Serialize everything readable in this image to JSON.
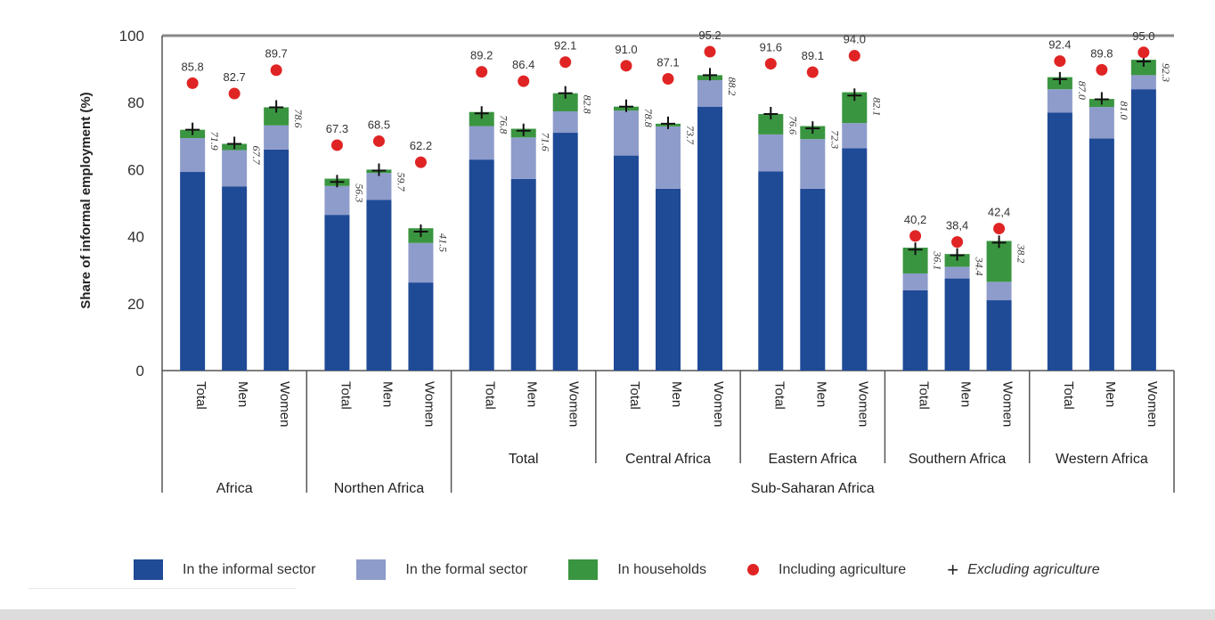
{
  "chart_data": {
    "type": "bar",
    "stacked": true,
    "title": "",
    "ylabel": "Share of informal employment (%)",
    "xlabel": "",
    "ylim": [
      0,
      100
    ],
    "yticks": [
      0,
      20,
      40,
      60,
      80,
      100
    ],
    "grid": false,
    "legend_position": "bottom",
    "colors": {
      "informal": "#1f4a96",
      "formal": "#8e9ccb",
      "households": "#3a9540",
      "including_agriculture": "#e02424",
      "excluding_agriculture": "#111111"
    },
    "legend": [
      {
        "key": "informal",
        "label": "In the informal sector"
      },
      {
        "key": "formal",
        "label": "In the formal sector"
      },
      {
        "key": "households",
        "label": "In households"
      },
      {
        "key": "including_agriculture",
        "label": "Including agriculture"
      },
      {
        "key": "excluding_agriculture",
        "label": "Excluding agriculture"
      }
    ],
    "groups": [
      {
        "label": "Africa",
        "super": null
      },
      {
        "label": "Northen Africa",
        "super": null
      },
      {
        "label": "Total",
        "super": "Sub-Saharan Africa"
      },
      {
        "label": "Central Africa",
        "super": "Sub-Saharan Africa"
      },
      {
        "label": "Eastern Africa",
        "super": "Sub-Saharan Africa"
      },
      {
        "label": "Southern Africa",
        "super": "Sub-Saharan Africa"
      },
      {
        "label": "Western Africa",
        "super": "Sub-Saharan Africa"
      }
    ],
    "supergroup_label": "Sub-Saharan Africa",
    "categories": [
      "Total",
      "Men",
      "Women"
    ],
    "bars": [
      {
        "group": 0,
        "category": "Total",
        "informal": 59.3,
        "formal": 10.1,
        "households": 2.5,
        "excluding_agriculture": 71.9,
        "excluding_label": "71.9",
        "including_agriculture": 85.8,
        "including_label": "85.8"
      },
      {
        "group": 0,
        "category": "Men",
        "informal": 55.0,
        "formal": 10.8,
        "households": 1.9,
        "excluding_agriculture": 67.7,
        "excluding_label": "67.7",
        "including_agriculture": 82.7,
        "including_label": "82.7"
      },
      {
        "group": 0,
        "category": "Women",
        "informal": 66.0,
        "formal": 7.2,
        "households": 5.4,
        "excluding_agriculture": 78.6,
        "excluding_label": "78.6",
        "including_agriculture": 89.7,
        "including_label": "89.7"
      },
      {
        "group": 1,
        "category": "Total",
        "informal": 46.5,
        "formal": 8.6,
        "households": 2.2,
        "excluding_agriculture": 56.3,
        "excluding_label": "56.3",
        "including_agriculture": 67.3,
        "including_label": "67.3"
      },
      {
        "group": 1,
        "category": "Men",
        "informal": 51.0,
        "formal": 8.0,
        "households": 1.0,
        "excluding_agriculture": 59.7,
        "excluding_label": "59.7",
        "including_agriculture": 68.5,
        "including_label": "68.5"
      },
      {
        "group": 1,
        "category": "Women",
        "informal": 26.3,
        "formal": 11.8,
        "households": 4.4,
        "excluding_agriculture": 41.5,
        "excluding_label": "41.5",
        "including_agriculture": 62.2,
        "including_label": "62.2"
      },
      {
        "group": 2,
        "category": "Total",
        "informal": 63.0,
        "formal": 10.0,
        "households": 4.2,
        "excluding_agriculture": 76.8,
        "excluding_label": "76.8",
        "including_agriculture": 89.2,
        "including_label": "89.2"
      },
      {
        "group": 2,
        "category": "Men",
        "informal": 57.2,
        "formal": 12.4,
        "households": 2.6,
        "excluding_agriculture": 71.6,
        "excluding_label": "71.6",
        "including_agriculture": 86.4,
        "including_label": "86.4"
      },
      {
        "group": 2,
        "category": "Women",
        "informal": 71.0,
        "formal": 6.4,
        "households": 5.4,
        "excluding_agriculture": 82.8,
        "excluding_label": "82.8",
        "including_agriculture": 92.1,
        "including_label": "92.1"
      },
      {
        "group": 3,
        "category": "Total",
        "informal": 64.2,
        "formal": 13.4,
        "households": 1.2,
        "excluding_agriculture": 78.8,
        "excluding_label": "78.8",
        "including_agriculture": 91.0,
        "including_label": "91.0"
      },
      {
        "group": 3,
        "category": "Men",
        "informal": 54.3,
        "formal": 18.6,
        "households": 0.8,
        "excluding_agriculture": 73.7,
        "excluding_label": "73.7",
        "including_agriculture": 87.1,
        "including_label": "87.1"
      },
      {
        "group": 3,
        "category": "Women",
        "informal": 78.8,
        "formal": 7.9,
        "households": 1.5,
        "excluding_agriculture": 88.2,
        "excluding_label": "88.2",
        "including_agriculture": 95.2,
        "including_label": "95.2"
      },
      {
        "group": 4,
        "category": "Total",
        "informal": 59.5,
        "formal": 11.0,
        "households": 6.1,
        "excluding_agriculture": 76.6,
        "excluding_label": "76.6",
        "including_agriculture": 91.6,
        "including_label": "91.6"
      },
      {
        "group": 4,
        "category": "Men",
        "informal": 54.3,
        "formal": 14.8,
        "households": 3.9,
        "excluding_agriculture": 72.3,
        "excluding_label": "72.3",
        "including_agriculture": 89.1,
        "including_label": "89.1"
      },
      {
        "group": 4,
        "category": "Women",
        "informal": 66.4,
        "formal": 7.5,
        "households": 9.2,
        "excluding_agriculture": 82.1,
        "excluding_label": "82.1",
        "including_agriculture": 94.0,
        "including_label": "94.0"
      },
      {
        "group": 5,
        "category": "Total",
        "informal": 24.0,
        "formal": 5.0,
        "households": 7.7,
        "excluding_agriculture": 36.1,
        "excluding_label": "36.1",
        "including_agriculture": 40.2,
        "including_label": "40,2"
      },
      {
        "group": 5,
        "category": "Men",
        "informal": 27.5,
        "formal": 3.5,
        "households": 3.8,
        "excluding_agriculture": 34.4,
        "excluding_label": "34.4",
        "including_agriculture": 38.4,
        "including_label": "38,4"
      },
      {
        "group": 5,
        "category": "Women",
        "informal": 21.0,
        "formal": 5.5,
        "households": 12.2,
        "excluding_agriculture": 38.2,
        "excluding_label": "38.2",
        "including_agriculture": 42.4,
        "including_label": "42,4"
      },
      {
        "group": 6,
        "category": "Total",
        "informal": 77.0,
        "formal": 7.0,
        "households": 3.6,
        "excluding_agriculture": 87.0,
        "excluding_label": "87.0",
        "including_agriculture": 92.4,
        "including_label": "92.4"
      },
      {
        "group": 6,
        "category": "Men",
        "informal": 69.3,
        "formal": 9.4,
        "households": 2.4,
        "excluding_agriculture": 81.0,
        "excluding_label": "81.0",
        "including_agriculture": 89.8,
        "including_label": "89.8"
      },
      {
        "group": 6,
        "category": "Women",
        "informal": 84.0,
        "formal": 4.2,
        "households": 4.6,
        "excluding_agriculture": 92.3,
        "excluding_label": "92.3",
        "including_agriculture": 95.0,
        "including_label": "95.0"
      }
    ]
  }
}
